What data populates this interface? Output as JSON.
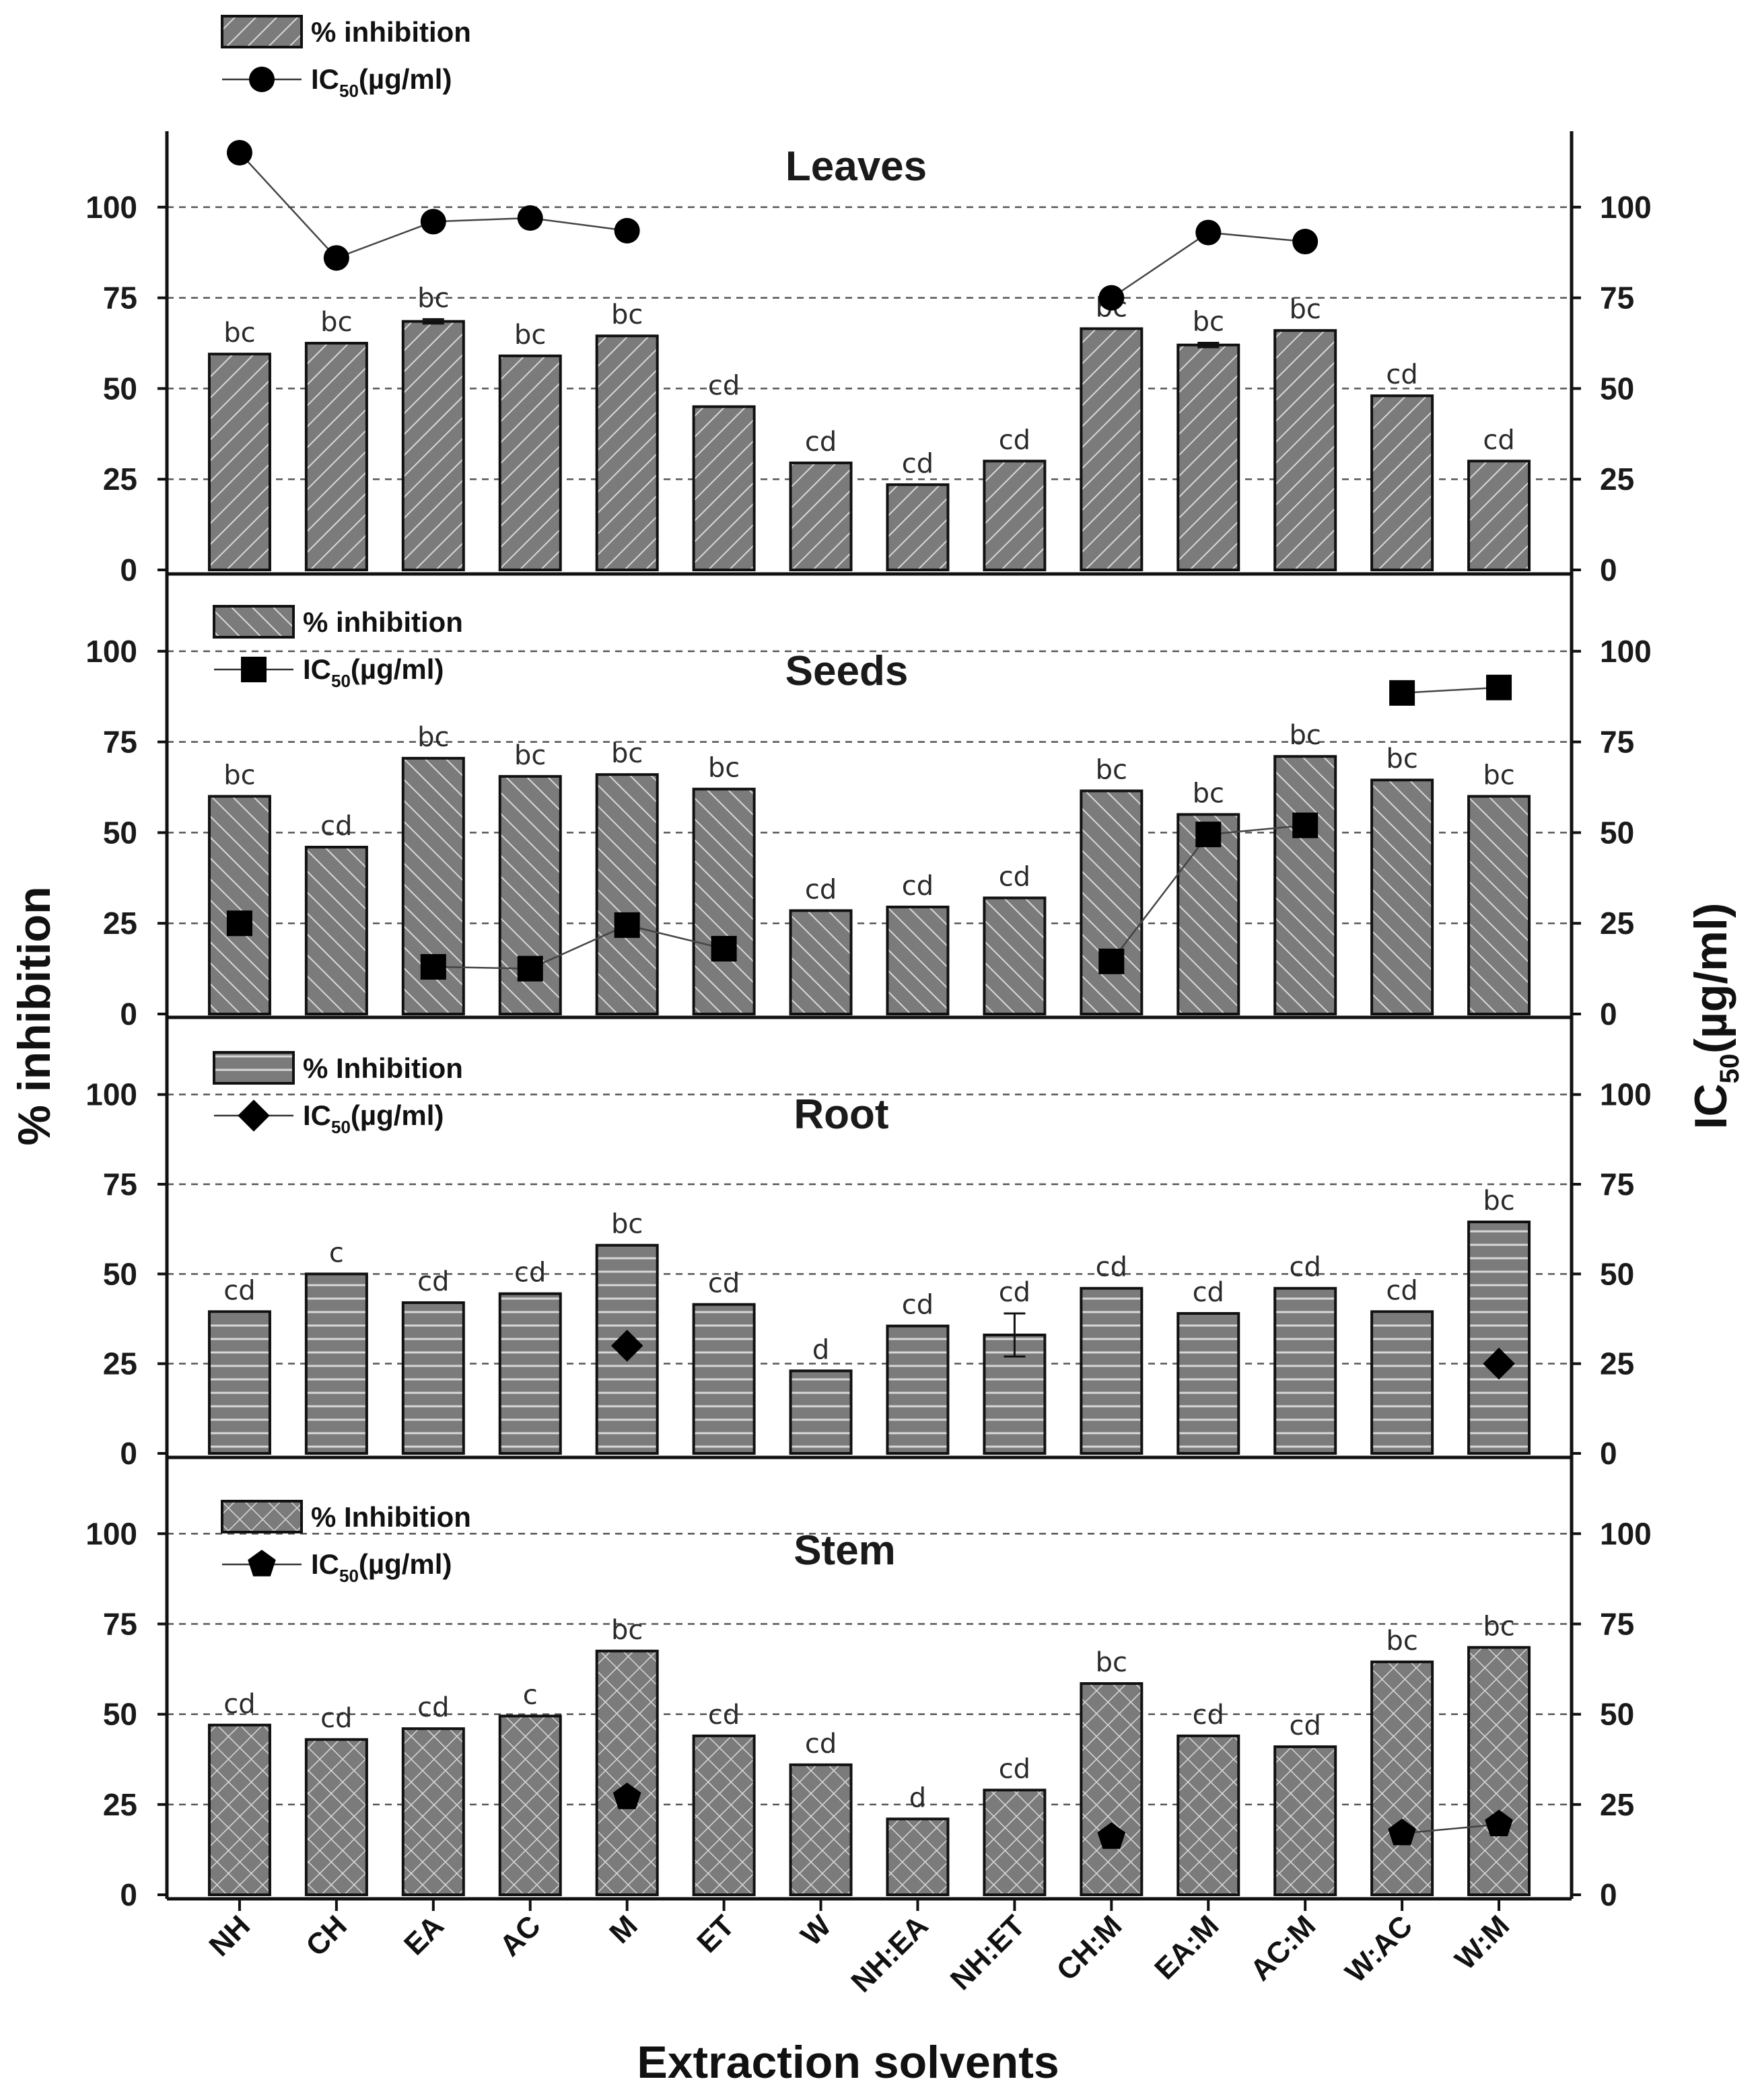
{
  "chart_data": {
    "type": "bar",
    "xlabel": "Extraction solvents",
    "ylabel_left": "% inhibition",
    "ylabel_right_main": "IC",
    "ylabel_right_sub": "50",
    "ylabel_right_unit": "(µg/ml)",
    "ylim": [
      0,
      120
    ],
    "yticks": [
      "0",
      "25",
      "50",
      "75",
      "100"
    ],
    "categories": [
      "NH",
      "CH",
      "EA",
      "AC",
      "M",
      "ET",
      "W",
      "NH:EA",
      "NH:ET",
      "CH:M",
      "EA:M",
      "AC:M",
      "W:AC",
      "W:M"
    ],
    "panels": [
      {
        "title": "Leaves",
        "legend_bar": "% inhibition",
        "legend_line_main": "IC",
        "legend_line_sub": "50",
        "legend_line_unit": "(µg/ml)",
        "marker": "circle",
        "pattern": "diag-right",
        "inhibition": [
          59.5,
          62.5,
          68.5,
          59,
          64.5,
          45,
          29.5,
          23.5,
          30,
          66.5,
          62,
          66,
          48,
          30
        ],
        "error": [
          0.5,
          0.3,
          0.6,
          0.3,
          0.4,
          0.3,
          0.3,
          0.3,
          0.3,
          0.3,
          0.6,
          0.3,
          0.4,
          0.3
        ],
        "letters": [
          "bc",
          "bc",
          "bc",
          "bc",
          "bc",
          "cd",
          "cd",
          "cd",
          "cd",
          "bc",
          "bc",
          "bc",
          "cd",
          "cd"
        ],
        "ic50": [
          115,
          86,
          96,
          97,
          93.5,
          null,
          null,
          null,
          null,
          75,
          93,
          90.5,
          null,
          null
        ],
        "ic50_segments": [
          [
            0,
            4
          ],
          [
            9,
            11
          ]
        ]
      },
      {
        "title": "Seeds",
        "legend_bar": "% inhibition",
        "legend_line_main": "IC",
        "legend_line_sub": "50",
        "legend_line_unit": "(µg/ml)",
        "marker": "square",
        "pattern": "diag-left",
        "inhibition": [
          60,
          46,
          70.5,
          65.5,
          66,
          62,
          28.5,
          29.5,
          32,
          61.5,
          55,
          71,
          64.5,
          60
        ],
        "error": [
          0.3,
          0.3,
          0.3,
          0.3,
          0.3,
          0.3,
          0.3,
          0.3,
          0.3,
          0.3,
          0.3,
          0.3,
          0.3,
          0.3
        ],
        "letters": [
          "bc",
          "cd",
          "bc",
          "bc",
          "bc",
          "bc",
          "cd",
          "cd",
          "cd",
          "bc",
          "bc",
          "bc",
          "bc",
          "bc"
        ],
        "ic50": [
          25,
          null,
          13,
          12.5,
          24.5,
          18,
          null,
          null,
          null,
          14.5,
          49.5,
          52,
          88.5,
          90
        ],
        "ic50_segments": [
          [
            2,
            5
          ],
          [
            9,
            11
          ],
          [
            12,
            13
          ]
        ]
      },
      {
        "title": "Root",
        "legend_bar": "% Inhibition",
        "legend_line_main": "IC",
        "legend_line_sub": "50",
        "legend_line_unit": "(µg/ml)",
        "marker": "diamond",
        "pattern": "horizontal",
        "inhibition": [
          39.5,
          50,
          42,
          44.5,
          58,
          41.5,
          23,
          35.5,
          33,
          46,
          39,
          46,
          39.5,
          64.5
        ],
        "error": [
          0.3,
          0.3,
          0.3,
          0.3,
          0.3,
          0.3,
          0.3,
          0.3,
          6,
          0.3,
          0.3,
          0.3,
          0.3,
          0.3
        ],
        "letters": [
          "cd",
          "c",
          "cd",
          "cd",
          "bc",
          "cd",
          "d",
          "cd",
          "cd",
          "cd",
          "cd",
          "cd",
          "cd",
          "bc"
        ],
        "ic50": [
          null,
          null,
          null,
          null,
          30,
          null,
          null,
          null,
          null,
          null,
          null,
          null,
          null,
          25
        ],
        "ic50_segments": []
      },
      {
        "title": "Stem",
        "legend_bar": "% Inhibition",
        "legend_line_main": "IC",
        "legend_line_sub": "50",
        "legend_line_unit": "(µg/ml)",
        "marker": "pentagon",
        "pattern": "crosshatch",
        "inhibition": [
          47,
          43,
          46,
          49.5,
          67.5,
          44,
          36,
          21,
          29,
          58.5,
          44,
          41,
          64.5,
          68.5
        ],
        "error": [
          0.3,
          0.3,
          0.3,
          0.4,
          0.3,
          0.3,
          0.3,
          0.3,
          0.3,
          0.3,
          0.3,
          0.3,
          0.5,
          0.3
        ],
        "letters": [
          "cd",
          "cd",
          "cd",
          "c",
          "bc",
          "cd",
          "cd",
          "d",
          "cd",
          "bc",
          "cd",
          "cd",
          "bc",
          "bc"
        ],
        "ic50": [
          null,
          null,
          null,
          null,
          27,
          null,
          null,
          null,
          null,
          16,
          null,
          null,
          17,
          19.5
        ],
        "ic50_segments": [
          [
            12,
            13
          ]
        ]
      }
    ]
  }
}
